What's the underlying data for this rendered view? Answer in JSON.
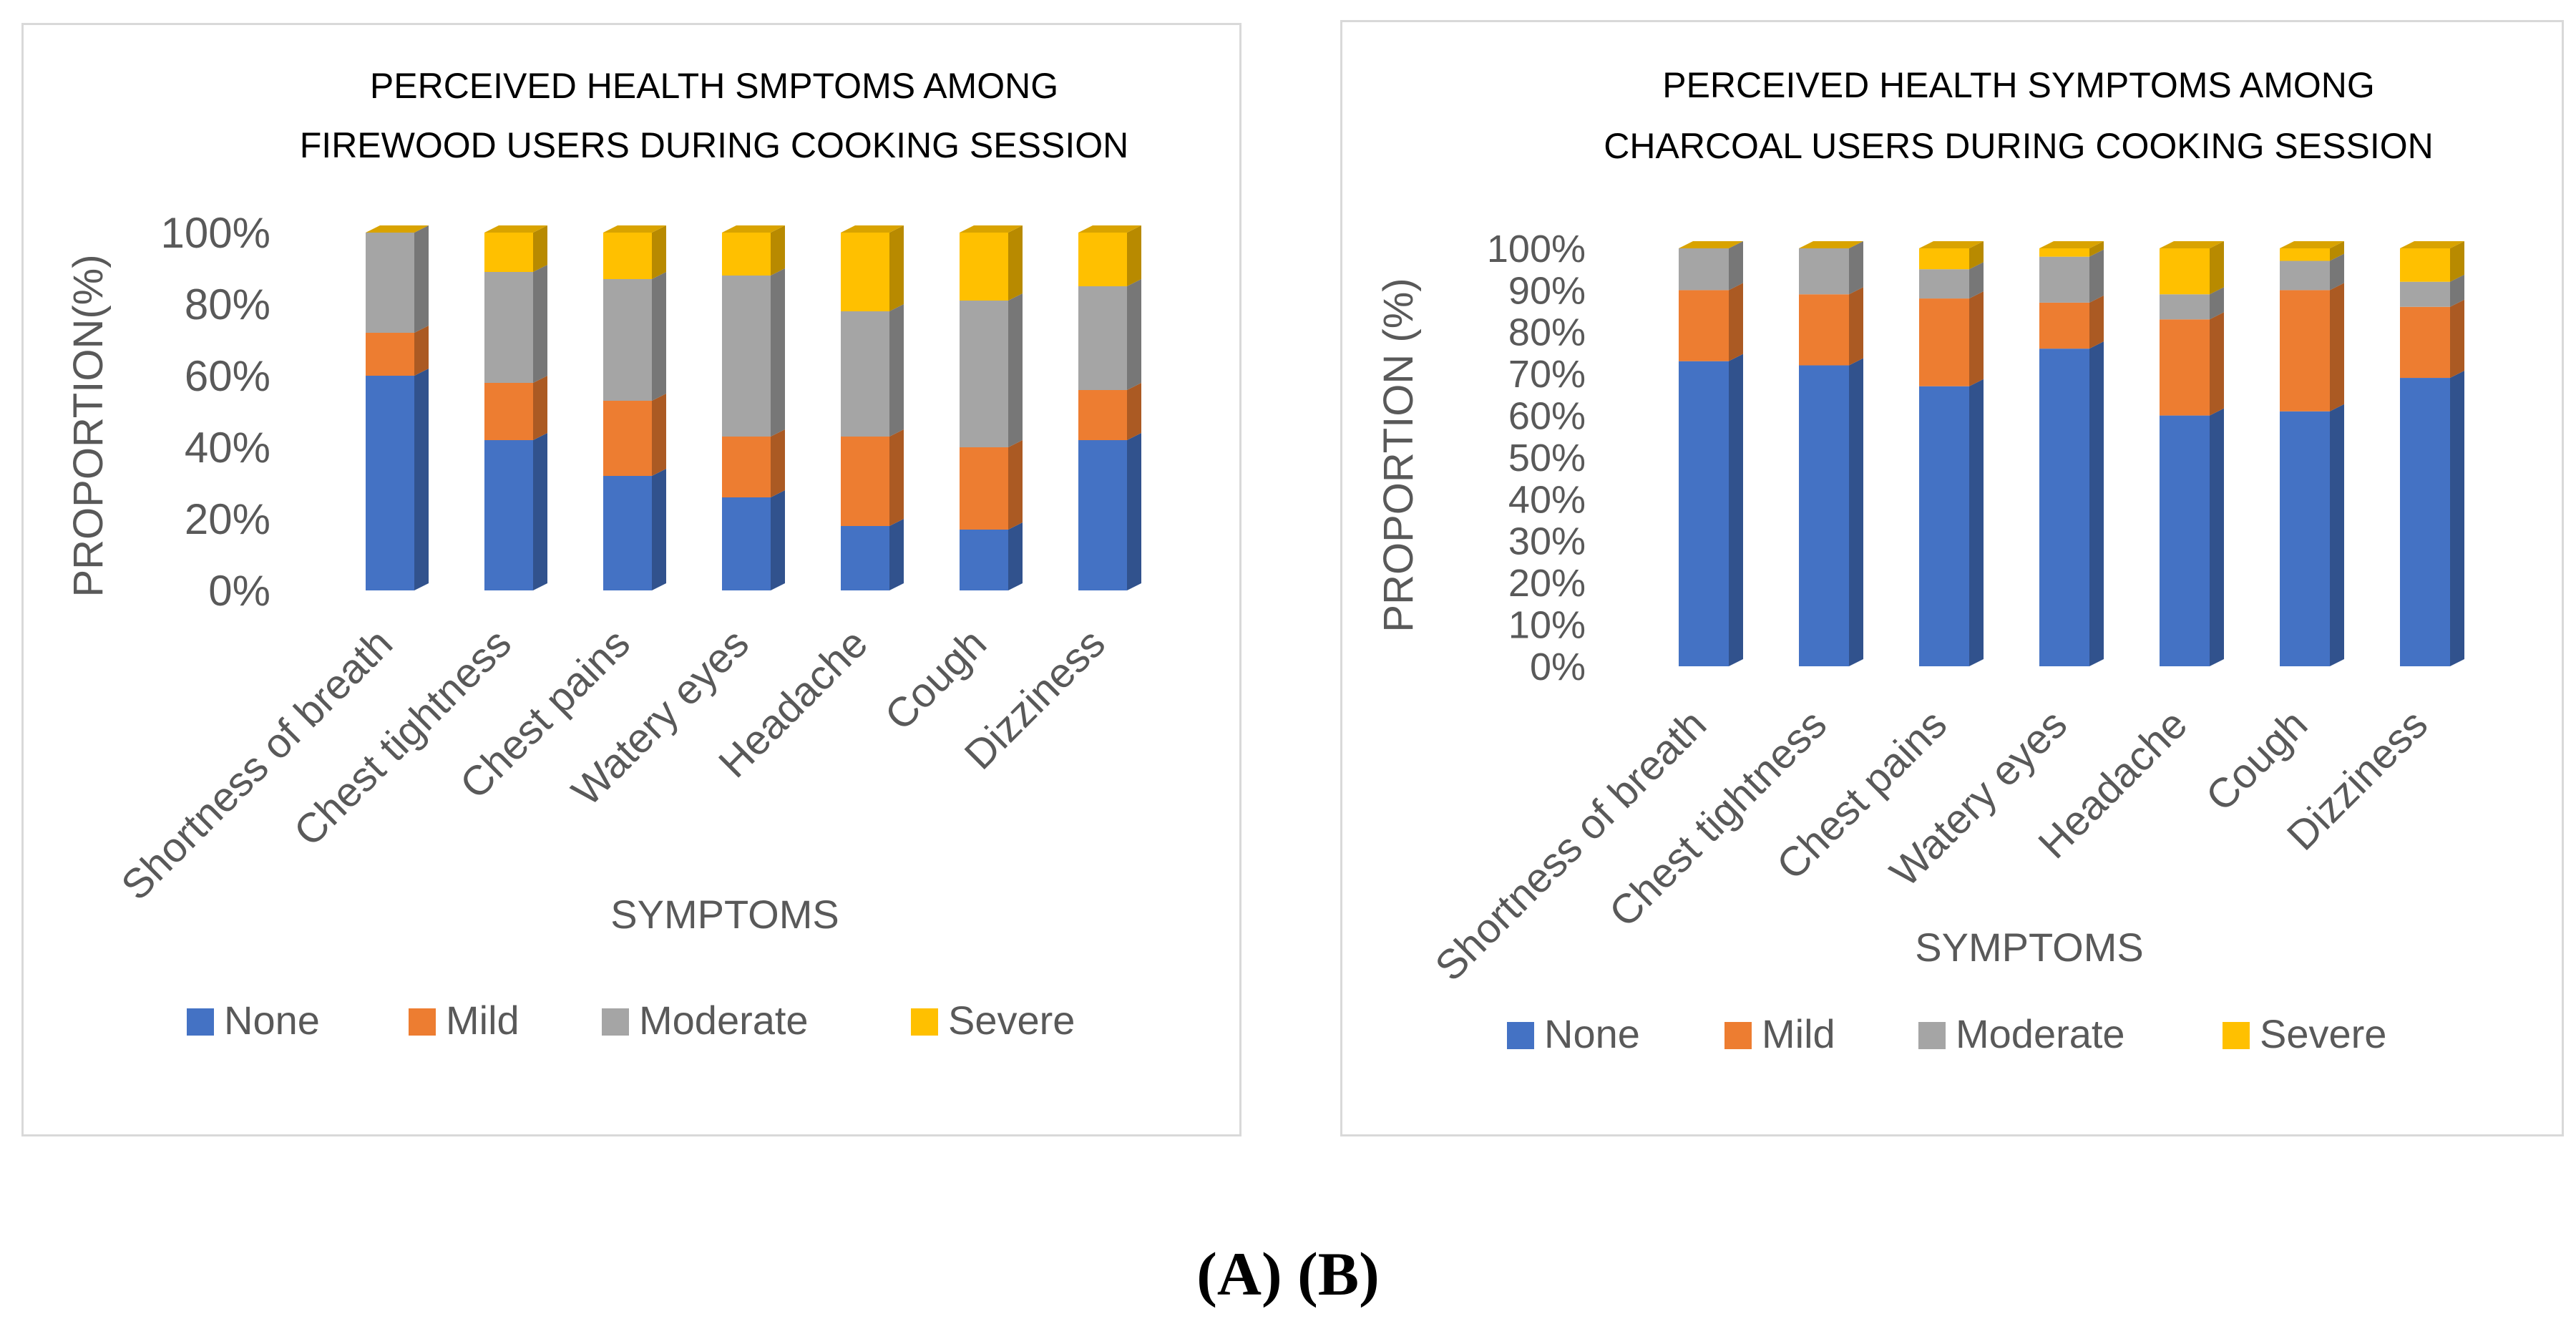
{
  "figure_caption": "(A) (B)",
  "colors": {
    "None": "#4472C4",
    "Mild": "#ED7D31",
    "Moderate": "#A5A5A5",
    "Severe": "#FFC000"
  },
  "chart_data": [
    {
      "panel": "A",
      "type": "bar",
      "stacked": "percent",
      "title_lines": [
        "PERCEIVED  HEALTH SMPTOMS AMONG",
        "FIREWOOD USERS DURING COOKING SESSION"
      ],
      "xlabel": "SYMPTOMS",
      "ylabel": "PROPORTION(%)",
      "ylim": [
        0,
        100
      ],
      "yticks": [
        "0%",
        "20%",
        "40%",
        "60%",
        "80%",
        "100%"
      ],
      "legend_position": "bottom",
      "categories": [
        "Shortness of breath",
        "Chest tightness",
        "Chest pains",
        "Watery eyes",
        "Headache",
        "Cough",
        "Dizziness"
      ],
      "series": [
        {
          "name": "None",
          "values": [
            60,
            42,
            32,
            26,
            18,
            17,
            42
          ]
        },
        {
          "name": "Mild",
          "values": [
            12,
            16,
            21,
            17,
            25,
            23,
            14
          ]
        },
        {
          "name": "Moderate",
          "values": [
            28,
            31,
            34,
            45,
            35,
            41,
            29
          ]
        },
        {
          "name": "Severe",
          "values": [
            0,
            11,
            13,
            12,
            22,
            19,
            15
          ]
        }
      ]
    },
    {
      "panel": "B",
      "type": "bar",
      "stacked": "percent",
      "title_lines": [
        "PERCEIVED  HEALTH SYMPTOMS AMONG",
        "CHARCOAL USERS DURING COOKING SESSION"
      ],
      "xlabel": "SYMPTOMS",
      "ylabel": "PROPORTION (%)",
      "ylim": [
        0,
        100
      ],
      "yticks": [
        "0%",
        "10%",
        "20%",
        "30%",
        "40%",
        "50%",
        "60%",
        "70%",
        "80%",
        "90%",
        "100%"
      ],
      "legend_position": "bottom",
      "categories": [
        "Shortness of breath",
        "Chest tightness",
        "Chest pains",
        "Watery eyes",
        "Headache",
        "Cough",
        "Dizziness"
      ],
      "series": [
        {
          "name": "None",
          "values": [
            73,
            72,
            67,
            76,
            60,
            61,
            69
          ]
        },
        {
          "name": "Mild",
          "values": [
            17,
            17,
            21,
            11,
            23,
            29,
            17
          ]
        },
        {
          "name": "Moderate",
          "values": [
            10,
            11,
            7,
            11,
            6,
            7,
            6
          ]
        },
        {
          "name": "Severe",
          "values": [
            0,
            0,
            5,
            2,
            11,
            3,
            8
          ]
        }
      ]
    }
  ]
}
